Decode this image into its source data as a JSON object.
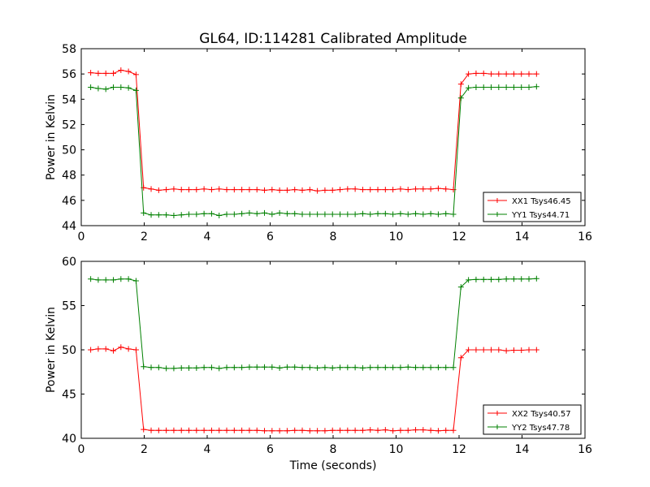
{
  "figure": {
    "title": "GL64, ID:114281 Calibrated Amplitude",
    "xlabel": "Time (seconds)"
  },
  "chart_data": [
    {
      "type": "line",
      "title": "GL64, ID:114281 Calibrated Amplitude",
      "xlabel": "",
      "ylabel": "Power in Kelvin",
      "xlim": [
        0,
        16
      ],
      "ylim": [
        44,
        58
      ],
      "xticks": [
        "0",
        "2",
        "4",
        "6",
        "8",
        "10",
        "12",
        "14",
        "16"
      ],
      "yticks": [
        "44",
        "46",
        "48",
        "50",
        "52",
        "54",
        "56",
        "58"
      ],
      "legend": "lower-right",
      "x": [
        0.3,
        0.54,
        0.78,
        1.02,
        1.26,
        1.5,
        1.74,
        1.98,
        2.22,
        2.46,
        2.7,
        2.94,
        3.18,
        3.42,
        3.66,
        3.9,
        4.14,
        4.38,
        4.62,
        4.86,
        5.1,
        5.34,
        5.58,
        5.82,
        6.06,
        6.3,
        6.54,
        6.78,
        7.02,
        7.26,
        7.5,
        7.74,
        7.98,
        8.22,
        8.46,
        8.7,
        8.94,
        9.18,
        9.42,
        9.66,
        9.9,
        10.14,
        10.38,
        10.62,
        10.86,
        11.1,
        11.34,
        11.58,
        11.82,
        12.06,
        12.3,
        12.54,
        12.78,
        13.02,
        13.26,
        13.5,
        13.74,
        13.98,
        14.22,
        14.46
      ],
      "series": [
        {
          "name": "XX1 Tsys46.45",
          "color": "#ff0000",
          "values": [
            56.1,
            56.05,
            56.05,
            56.05,
            56.3,
            56.2,
            55.95,
            47.0,
            46.9,
            46.8,
            46.85,
            46.9,
            46.85,
            46.85,
            46.85,
            46.9,
            46.85,
            46.9,
            46.85,
            46.85,
            46.85,
            46.85,
            46.85,
            46.8,
            46.85,
            46.8,
            46.8,
            46.85,
            46.8,
            46.85,
            46.75,
            46.8,
            46.8,
            46.85,
            46.9,
            46.9,
            46.85,
            46.85,
            46.85,
            46.85,
            46.85,
            46.9,
            46.85,
            46.9,
            46.9,
            46.9,
            46.95,
            46.9,
            46.85,
            55.2,
            56.0,
            56.05,
            56.05,
            56.0,
            56.0,
            56.0,
            56.0,
            56.0,
            56.0,
            56.0
          ]
        },
        {
          "name": "YY1 Tsys44.71",
          "color": "#008000",
          "values": [
            54.95,
            54.85,
            54.8,
            54.95,
            54.95,
            54.9,
            54.7,
            45.0,
            44.85,
            44.85,
            44.85,
            44.8,
            44.85,
            44.9,
            44.9,
            44.95,
            44.95,
            44.8,
            44.9,
            44.9,
            44.95,
            45.0,
            44.95,
            45.0,
            44.9,
            45.0,
            44.95,
            44.95,
            44.9,
            44.9,
            44.9,
            44.9,
            44.9,
            44.9,
            44.9,
            44.9,
            44.95,
            44.9,
            44.95,
            44.95,
            44.9,
            44.95,
            44.9,
            44.95,
            44.9,
            44.95,
            44.9,
            44.95,
            44.9,
            54.1,
            54.9,
            54.95,
            54.95,
            54.95,
            54.95,
            54.95,
            54.95,
            54.95,
            54.95,
            55.0
          ]
        }
      ]
    },
    {
      "type": "line",
      "title": "",
      "xlabel": "Time (seconds)",
      "ylabel": "Power in Kelvin",
      "xlim": [
        0,
        16
      ],
      "ylim": [
        40,
        60
      ],
      "xticks": [
        "0",
        "2",
        "4",
        "6",
        "8",
        "10",
        "12",
        "14",
        "16"
      ],
      "yticks": [
        "40",
        "45",
        "50",
        "55",
        "60"
      ],
      "legend": "lower-right",
      "x": [
        0.3,
        0.54,
        0.78,
        1.02,
        1.26,
        1.5,
        1.74,
        1.98,
        2.22,
        2.46,
        2.7,
        2.94,
        3.18,
        3.42,
        3.66,
        3.9,
        4.14,
        4.38,
        4.62,
        4.86,
        5.1,
        5.34,
        5.58,
        5.82,
        6.06,
        6.3,
        6.54,
        6.78,
        7.02,
        7.26,
        7.5,
        7.74,
        7.98,
        8.22,
        8.46,
        8.7,
        8.94,
        9.18,
        9.42,
        9.66,
        9.9,
        10.14,
        10.38,
        10.62,
        10.86,
        11.1,
        11.34,
        11.58,
        11.82,
        12.06,
        12.3,
        12.54,
        12.78,
        13.02,
        13.26,
        13.5,
        13.74,
        13.98,
        14.22,
        14.46
      ],
      "series": [
        {
          "name": "XX2 Tsys40.57",
          "color": "#ff0000",
          "values": [
            50.0,
            50.1,
            50.1,
            49.9,
            50.3,
            50.1,
            50.0,
            41.0,
            40.9,
            40.9,
            40.9,
            40.9,
            40.9,
            40.9,
            40.9,
            40.9,
            40.9,
            40.9,
            40.9,
            40.9,
            40.9,
            40.9,
            40.9,
            40.85,
            40.85,
            40.85,
            40.85,
            40.9,
            40.9,
            40.85,
            40.85,
            40.85,
            40.9,
            40.9,
            40.9,
            40.9,
            40.9,
            40.95,
            40.9,
            40.95,
            40.85,
            40.9,
            40.9,
            40.95,
            40.95,
            40.9,
            40.85,
            40.9,
            40.9,
            49.1,
            50.0,
            50.0,
            50.0,
            50.0,
            50.0,
            49.9,
            49.95,
            49.95,
            50.0,
            50.0
          ]
        },
        {
          "name": "YY2 Tsys47.78",
          "color": "#008000",
          "values": [
            58.0,
            57.9,
            57.9,
            57.9,
            58.0,
            58.0,
            57.8,
            48.1,
            48.0,
            48.0,
            47.9,
            47.9,
            47.95,
            47.95,
            47.95,
            48.0,
            48.0,
            47.9,
            48.0,
            48.0,
            48.0,
            48.05,
            48.05,
            48.05,
            48.05,
            47.95,
            48.05,
            48.05,
            48.0,
            48.0,
            47.95,
            48.0,
            47.95,
            48.0,
            48.0,
            48.0,
            47.95,
            48.0,
            48.0,
            48.0,
            48.0,
            48.0,
            48.05,
            48.0,
            48.0,
            48.0,
            48.0,
            48.0,
            48.0,
            57.1,
            57.9,
            57.95,
            57.95,
            57.95,
            57.95,
            58.0,
            58.0,
            58.0,
            58.0,
            58.05
          ]
        }
      ]
    }
  ]
}
